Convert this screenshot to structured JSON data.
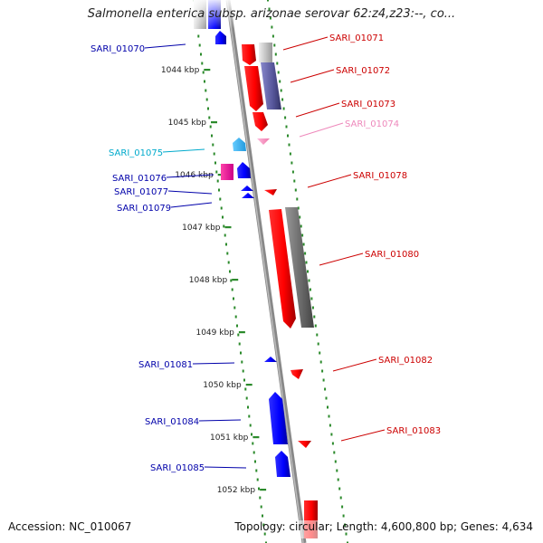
{
  "title": "Salmonella enterica subsp. arizonae serovar 62:z4,z23:--, co...",
  "accession": "Accession: NC_010067",
  "topology": "Topology: circular; Length: 4,600,800 bp; Genes: 4,634",
  "colors": {
    "backbone": "#8a8a8a",
    "tick": "#2b8a2b",
    "forward_gene": "#ff0000",
    "forward_cds": "#555566",
    "reverse_gene": "#0000ff",
    "reverse_cds": "#3399ff",
    "label_forward": "#cc0000",
    "label_reverse": "#0000aa",
    "label_light_blue": "#00aacc",
    "label_pink": "#ee88bb"
  },
  "ticks": [
    {
      "label": "1044 kbp",
      "kbp": 1044
    },
    {
      "label": "1045 kbp",
      "kbp": 1045
    },
    {
      "label": "1046 kbp",
      "kbp": 1046
    },
    {
      "label": "1047 kbp",
      "kbp": 1047
    },
    {
      "label": "1048 kbp",
      "kbp": 1048
    },
    {
      "label": "1049 kbp",
      "kbp": 1049
    },
    {
      "label": "1050 kbp",
      "kbp": 1050
    },
    {
      "label": "1051 kbp",
      "kbp": 1051
    },
    {
      "label": "1052 kbp",
      "kbp": 1052
    }
  ],
  "genes": [
    {
      "name": "SARI_01070",
      "strand": "reverse",
      "start_kbp": 1043.65,
      "end_kbp": 1043.95,
      "color": "#0000ff",
      "label_color": "#0000aa"
    },
    {
      "name": "SARI_01071",
      "strand": "forward",
      "start_kbp": 1043.82,
      "end_kbp": 1044.02,
      "color": "#ff0000",
      "label_color": "#cc0000"
    },
    {
      "name": "SARI_01072",
      "strand": "forward",
      "start_kbp": 1044.02,
      "end_kbp": 1044.85,
      "color": "#ff0000",
      "label_color": "#cc0000"
    },
    {
      "name": "SARI_01073",
      "strand": "forward",
      "start_kbp": 1044.88,
      "end_kbp": 1045.1,
      "color": "#ff0000",
      "label_color": "#cc0000"
    },
    {
      "name": "SARI_01074",
      "strand": "forward",
      "start_kbp": 1045.25,
      "end_kbp": 1045.33,
      "color": "#ee88bb",
      "label_color": "#ee88bb"
    },
    {
      "name": "SARI_01075",
      "strand": "reverse",
      "start_kbp": 1045.4,
      "end_kbp": 1045.58,
      "color": "#3399ff",
      "label_color": "#00aacc"
    },
    {
      "name": "SARI_01076",
      "strand": "reverse",
      "start_kbp": 1045.86,
      "end_kbp": 1046.1,
      "color": "#0000ff",
      "label_color": "#0000aa"
    },
    {
      "name": "SARI_01077",
      "strand": "reverse",
      "start_kbp": 1046.27,
      "end_kbp": 1046.37,
      "color": "#0000ff",
      "label_color": "#0000aa"
    },
    {
      "name": "SARI_01078",
      "strand": "forward",
      "start_kbp": 1046.29,
      "end_kbp": 1046.39,
      "color": "#ff0000",
      "label_color": "#cc0000"
    },
    {
      "name": "SARI_01079",
      "strand": "reverse",
      "start_kbp": 1046.42,
      "end_kbp": 1046.52,
      "color": "#0000ff",
      "label_color": "#0000aa"
    },
    {
      "name": "SARI_01080",
      "strand": "forward",
      "start_kbp": 1046.72,
      "end_kbp": 1048.85,
      "color": "#ff0000",
      "label_color": "#cc0000"
    },
    {
      "name": "SARI_01081",
      "strand": "reverse",
      "start_kbp": 1049.45,
      "end_kbp": 1049.55,
      "color": "#0000ff",
      "label_color": "#0000aa"
    },
    {
      "name": "SARI_01082",
      "strand": "forward",
      "start_kbp": 1049.72,
      "end_kbp": 1049.88,
      "color": "#ff0000",
      "label_color": "#cc0000"
    },
    {
      "name": "SARI_01083",
      "strand": "forward",
      "start_kbp": 1050.95,
      "end_kbp": 1051.08,
      "color": "#ff0000",
      "label_color": "#cc0000"
    },
    {
      "name": "SARI_01084",
      "strand": "reverse",
      "start_kbp": 1050.25,
      "end_kbp": 1051.25,
      "color": "#0000ff",
      "label_color": "#0000aa"
    },
    {
      "name": "SARI_01085",
      "strand": "reverse",
      "start_kbp": 1051.35,
      "end_kbp": 1051.85,
      "color": "#0000ff",
      "label_color": "#0000aa"
    }
  ]
}
